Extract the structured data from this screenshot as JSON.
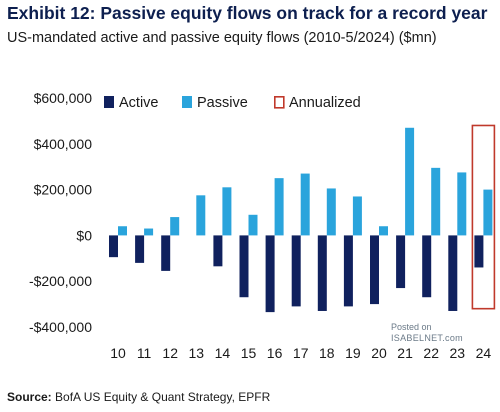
{
  "title": "Exhibit 12: Passive equity flows on track for a record year",
  "subtitle": "US-mandated active and passive equity flows (2010-5/2024) ($mn)",
  "source_label": "Source:",
  "source_text": "BofA US Equity & Quant Strategy, EPFR",
  "watermark": {
    "line1": "Posted on",
    "line2": "ISABELNET.com"
  },
  "colors": {
    "active": "#10215e",
    "passive": "#2aa4dc",
    "annualized": "#c0392b"
  },
  "chart_data": {
    "type": "bar",
    "categories": [
      "10",
      "11",
      "12",
      "13",
      "14",
      "15",
      "16",
      "17",
      "18",
      "19",
      "20",
      "21",
      "22",
      "23",
      "24"
    ],
    "series": [
      {
        "name": "Active",
        "values": [
          -95000,
          -120000,
          -155000,
          0,
          -135000,
          -270000,
          -335000,
          -310000,
          -330000,
          -310000,
          -300000,
          -230000,
          -270000,
          -330000,
          -140000
        ]
      },
      {
        "name": "Passive",
        "values": [
          40000,
          30000,
          80000,
          175000,
          210000,
          90000,
          250000,
          270000,
          205000,
          170000,
          40000,
          470000,
          295000,
          275000,
          200000
        ]
      },
      {
        "name": "Annualized",
        "values": [
          null,
          null,
          null,
          null,
          null,
          null,
          null,
          null,
          null,
          null,
          null,
          null,
          null,
          null,
          480000
        ],
        "range_low": -320000
      }
    ],
    "yticks": [
      600000,
      400000,
      200000,
      0,
      -200000,
      -400000
    ],
    "ytick_labels": [
      "$600,000",
      "$400,000",
      "$200,000",
      "$0",
      "-$200,000",
      "-$400,000"
    ],
    "ylim": [
      -400000,
      600000
    ],
    "legend_position": "top",
    "grid": false
  }
}
